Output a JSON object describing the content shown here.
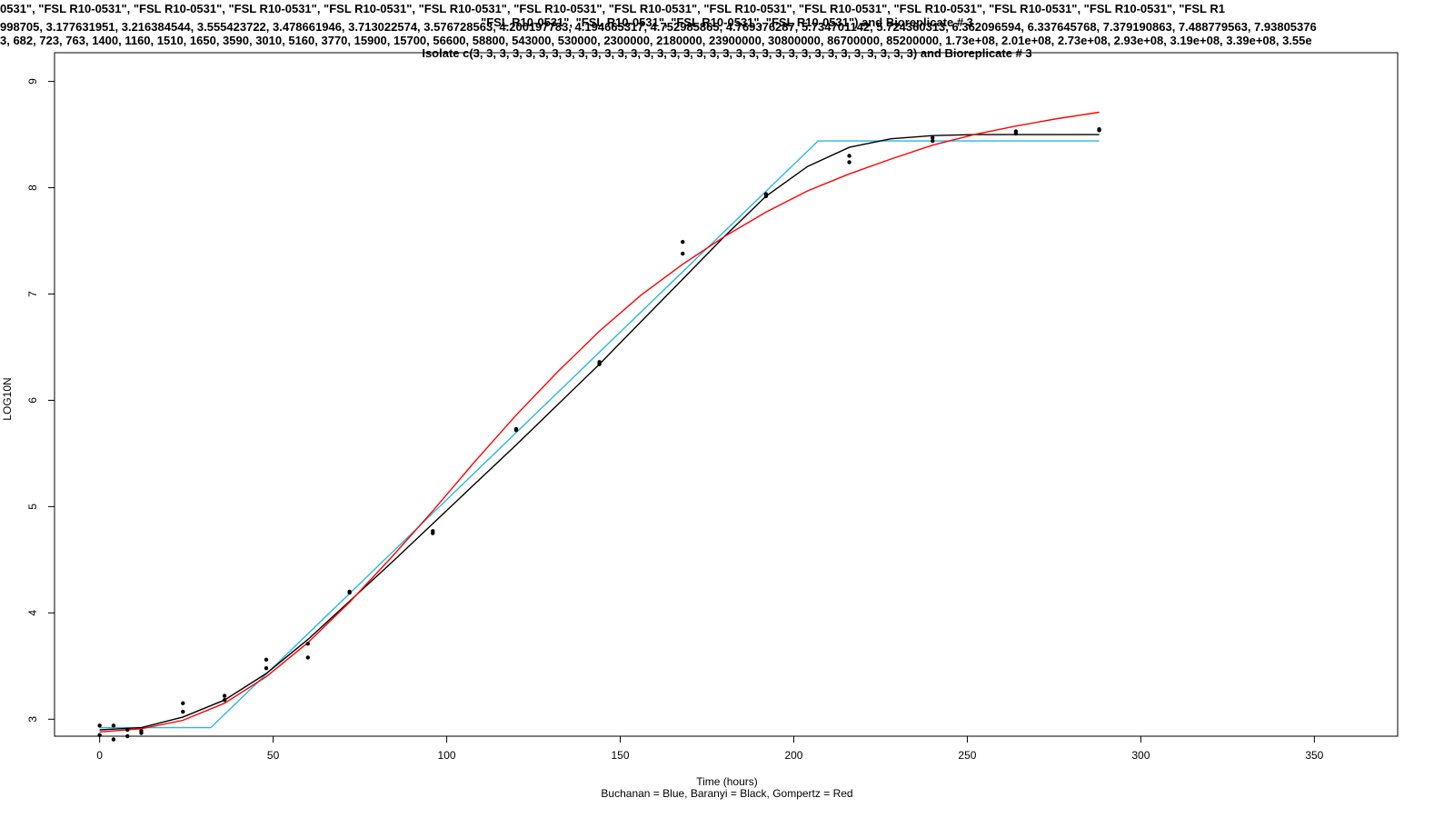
{
  "titles": {
    "line1": "0531\", \"FSL R10-0531\", \"FSL R10-0531\", \"FSL R10-0531\", \"FSL R10-0531\", \"FSL R10-0531\", \"FSL R10-0531\", \"FSL R10-0531\", \"FSL R10-0531\", \"FSL R10-0531\", \"FSL R10-0531\", \"FSL R10-0531\", \"FSL R10-0531\", \"FSL R1",
    "line2": "\"FSL R10-0531\", \"FSL R10-0531\", \"FSL R10-0531\", \"FSL R10-0531\") and Bioreplicate # 3",
    "line3": "998705, 3.177631951, 3.216384544, 3.555423722, 3.478661946, 3.713022574, 3.576728563, 4.200197783, 4.194665317, 4.752985865, 4.769376287, 5.734701142, 5.724360313, 6.362096594, 6.337645768, 7.379190863, 7.488779563, 7.93805376",
    "line4": "3, 682, 723, 763, 1400, 1160, 1510, 1650, 3590, 3010, 5160, 3770, 15900, 15700, 56600, 58800, 543000, 530000, 2300000, 2180000, 23900000, 30800000, 86700000, 85200000, 1.73e+08, 2.01e+08, 2.73e+08, 2.93e+08, 3.19e+08, 3.39e+08, 3.55e",
    "line5": "Isolate  c(3, 3, 3, 3, 3, 3, 3, 3, 3, 3, 3, 3, 3, 3, 3, 3, 3, 3, 3, 3, 3, 3, 3, 3, 3, 3, 3, 3, 3, 3, 3, 3, 3, 3) and Bioreplicate # 3"
  },
  "chart_data": {
    "type": "scatter",
    "xlabel": "Time (hours)",
    "ylabel": "LOG10N",
    "subtitle": "Buchanan = Blue, Baranyi = Black, Gompertz = Red",
    "xlim": [
      -13,
      374
    ],
    "ylim": [
      2.84,
      9.27
    ],
    "xticks": [
      0,
      50,
      100,
      150,
      200,
      250,
      300,
      350
    ],
    "yticks": [
      3,
      4,
      5,
      6,
      7,
      8,
      9
    ],
    "points": [
      {
        "x": 0,
        "y": 2.94
      },
      {
        "x": 0,
        "y": 2.85
      },
      {
        "x": 4,
        "y": 2.94
      },
      {
        "x": 4,
        "y": 2.81
      },
      {
        "x": 8,
        "y": 2.9
      },
      {
        "x": 8,
        "y": 2.84
      },
      {
        "x": 12,
        "y": 2.89
      },
      {
        "x": 12,
        "y": 2.87
      },
      {
        "x": 24,
        "y": 3.15
      },
      {
        "x": 24,
        "y": 3.07
      },
      {
        "x": 36,
        "y": 3.22
      },
      {
        "x": 36,
        "y": 3.18
      },
      {
        "x": 48,
        "y": 3.56
      },
      {
        "x": 48,
        "y": 3.48
      },
      {
        "x": 60,
        "y": 3.71
      },
      {
        "x": 60,
        "y": 3.58
      },
      {
        "x": 72,
        "y": 4.2
      },
      {
        "x": 72,
        "y": 4.19
      },
      {
        "x": 96,
        "y": 4.75
      },
      {
        "x": 96,
        "y": 4.77
      },
      {
        "x": 120,
        "y": 5.73
      },
      {
        "x": 120,
        "y": 5.72
      },
      {
        "x": 144,
        "y": 6.36
      },
      {
        "x": 144,
        "y": 6.34
      },
      {
        "x": 168,
        "y": 7.38
      },
      {
        "x": 168,
        "y": 7.49
      },
      {
        "x": 192,
        "y": 7.94
      },
      {
        "x": 192,
        "y": 7.92
      },
      {
        "x": 216,
        "y": 8.24
      },
      {
        "x": 216,
        "y": 8.3
      },
      {
        "x": 240,
        "y": 8.44
      },
      {
        "x": 240,
        "y": 8.47
      },
      {
        "x": 264,
        "y": 8.51
      },
      {
        "x": 264,
        "y": 8.53
      },
      {
        "x": 288,
        "y": 8.55
      },
      {
        "x": 288,
        "y": 8.54
      }
    ],
    "series": [
      {
        "name": "Buchanan",
        "color": "#29b6e3",
        "x": [
          0,
          32,
          207,
          288
        ],
        "y": [
          2.92,
          2.92,
          8.44,
          8.44
        ]
      },
      {
        "name": "Baranyi",
        "color": "#000000",
        "x": [
          0,
          12,
          24,
          36,
          48,
          60,
          72,
          84,
          96,
          108,
          120,
          132,
          144,
          156,
          168,
          180,
          192,
          204,
          216,
          228,
          240,
          252,
          264,
          276,
          288
        ],
        "y": [
          2.9,
          2.92,
          3.02,
          3.18,
          3.43,
          3.75,
          4.11,
          4.47,
          4.84,
          5.21,
          5.58,
          5.96,
          6.34,
          6.74,
          7.14,
          7.54,
          7.92,
          8.2,
          8.38,
          8.46,
          8.49,
          8.5,
          8.5,
          8.5,
          8.5
        ]
      },
      {
        "name": "Gompertz",
        "color": "#ff0000",
        "x": [
          0,
          12,
          24,
          36,
          48,
          60,
          72,
          84,
          96,
          108,
          120,
          132,
          144,
          156,
          168,
          180,
          192,
          204,
          216,
          228,
          240,
          252,
          264,
          276,
          288
        ],
        "y": [
          2.88,
          2.91,
          2.99,
          3.15,
          3.4,
          3.72,
          4.1,
          4.52,
          4.96,
          5.42,
          5.86,
          6.27,
          6.65,
          6.99,
          7.28,
          7.54,
          7.77,
          7.97,
          8.13,
          8.27,
          8.4,
          8.5,
          8.58,
          8.65,
          8.71
        ]
      }
    ]
  }
}
